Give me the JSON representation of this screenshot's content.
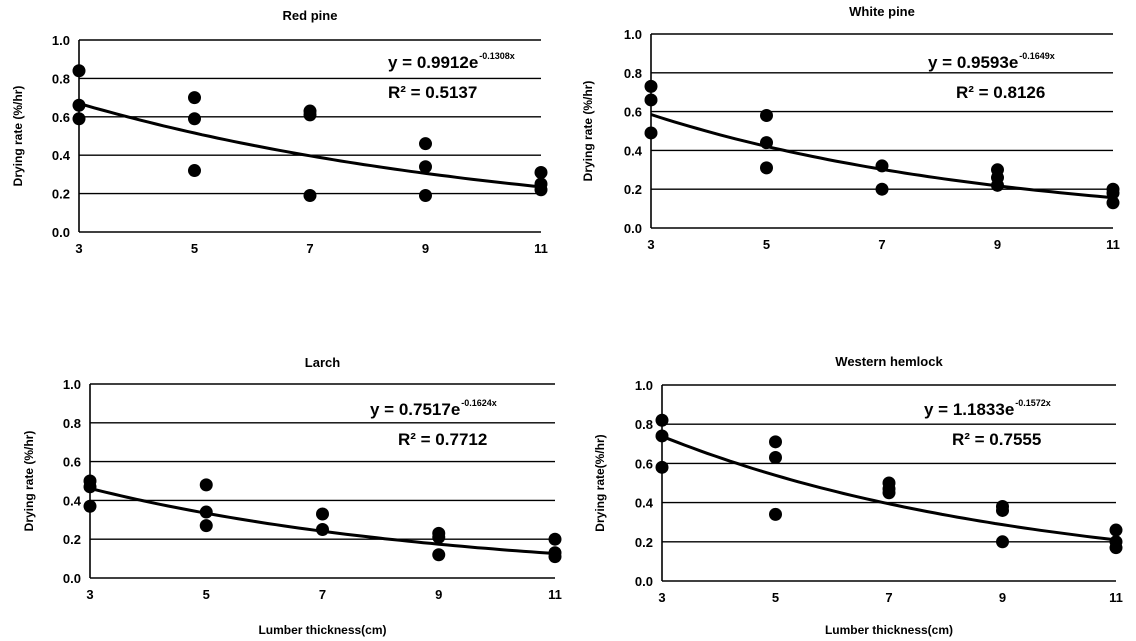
{
  "chart_data": [
    {
      "type": "scatter",
      "title": "Red pine",
      "xlabel": "",
      "ylabel": "Drying rate (%/hr)",
      "x_ticks": [
        "3",
        "5",
        "7",
        "9",
        "11"
      ],
      "y_ticks": [
        "0.0",
        "0.2",
        "0.4",
        "0.6",
        "0.8",
        "1.0"
      ],
      "xlim": [
        3,
        11
      ],
      "ylim": [
        0,
        1
      ],
      "grid": "horizontal",
      "points": [
        [
          3,
          0.84
        ],
        [
          3,
          0.66
        ],
        [
          3,
          0.59
        ],
        [
          5,
          0.7
        ],
        [
          5,
          0.59
        ],
        [
          5,
          0.32
        ],
        [
          7,
          0.63
        ],
        [
          7,
          0.61
        ],
        [
          7,
          0.19
        ],
        [
          9,
          0.46
        ],
        [
          9,
          0.34
        ],
        [
          9,
          0.19
        ],
        [
          11,
          0.31
        ],
        [
          11,
          0.25
        ],
        [
          11,
          0.22
        ]
      ],
      "fit": {
        "type": "exponential",
        "a": 0.9912,
        "b": -0.1308
      },
      "equation": "y = 0.9912e",
      "equation_exponent": "-0.1308x",
      "r2_label": "R² = 0.5137"
    },
    {
      "type": "scatter",
      "title": "White pine",
      "xlabel": "",
      "ylabel": "Drying rate (%/hr)",
      "x_ticks": [
        "3",
        "5",
        "7",
        "9",
        "11"
      ],
      "y_ticks": [
        "0.0",
        "0.2",
        "0.4",
        "0.6",
        "0.8",
        "1.0"
      ],
      "xlim": [
        3,
        11
      ],
      "ylim": [
        0,
        1
      ],
      "grid": "horizontal",
      "points": [
        [
          3,
          0.73
        ],
        [
          3,
          0.66
        ],
        [
          3,
          0.49
        ],
        [
          5,
          0.58
        ],
        [
          5,
          0.44
        ],
        [
          5,
          0.31
        ],
        [
          7,
          0.32
        ],
        [
          7,
          0.2
        ],
        [
          9,
          0.3
        ],
        [
          9,
          0.26
        ],
        [
          9,
          0.22
        ],
        [
          11,
          0.2
        ],
        [
          11,
          0.18
        ],
        [
          11,
          0.13
        ]
      ],
      "fit": {
        "type": "exponential",
        "a": 0.9593,
        "b": -0.1649
      },
      "equation": "y = 0.9593e",
      "equation_exponent": "-0.1649x",
      "r2_label": "R² = 0.8126"
    },
    {
      "type": "scatter",
      "title": "Larch",
      "xlabel": "Lumber thickness(cm)",
      "ylabel": "Drying rate (%/hr)",
      "x_ticks": [
        "3",
        "5",
        "7",
        "9",
        "11"
      ],
      "y_ticks": [
        "0.0",
        "0.2",
        "0.4",
        "0.6",
        "0.8",
        "1.0"
      ],
      "xlim": [
        3,
        11
      ],
      "ylim": [
        0,
        1
      ],
      "grid": "horizontal",
      "points": [
        [
          3,
          0.5
        ],
        [
          3,
          0.47
        ],
        [
          3,
          0.37
        ],
        [
          5,
          0.48
        ],
        [
          5,
          0.34
        ],
        [
          5,
          0.27
        ],
        [
          7,
          0.33
        ],
        [
          7,
          0.25
        ],
        [
          9,
          0.23
        ],
        [
          9,
          0.21
        ],
        [
          9,
          0.12
        ],
        [
          11,
          0.2
        ],
        [
          11,
          0.13
        ],
        [
          11,
          0.11
        ]
      ],
      "fit": {
        "type": "exponential",
        "a": 0.7517,
        "b": -0.1624
      },
      "equation": "y = 0.7517e",
      "equation_exponent": "-0.1624x",
      "r2_label": "R² = 0.7712"
    },
    {
      "type": "scatter",
      "title": "Western hemlock",
      "xlabel": "Lumber thickness(cm)",
      "ylabel": "Drying rate(%/hr)",
      "x_ticks": [
        "3",
        "5",
        "7",
        "9",
        "11"
      ],
      "y_ticks": [
        "0.0",
        "0.2",
        "0.4",
        "0.6",
        "0.8",
        "1.0"
      ],
      "xlim": [
        3,
        11
      ],
      "ylim": [
        0,
        1
      ],
      "grid": "horizontal",
      "points": [
        [
          3,
          0.82
        ],
        [
          3,
          0.74
        ],
        [
          3,
          0.58
        ],
        [
          5,
          0.71
        ],
        [
          5,
          0.63
        ],
        [
          5,
          0.34
        ],
        [
          7,
          0.5
        ],
        [
          7,
          0.47
        ],
        [
          7,
          0.45
        ],
        [
          9,
          0.38
        ],
        [
          9,
          0.36
        ],
        [
          9,
          0.2
        ],
        [
          11,
          0.26
        ],
        [
          11,
          0.2
        ],
        [
          11,
          0.17
        ]
      ],
      "fit": {
        "type": "exponential",
        "a": 1.1833,
        "b": -0.1572
      },
      "equation": "y = 1.1833e",
      "equation_exponent": "-0.1572x",
      "r2_label": "R² = 0.7555"
    }
  ]
}
